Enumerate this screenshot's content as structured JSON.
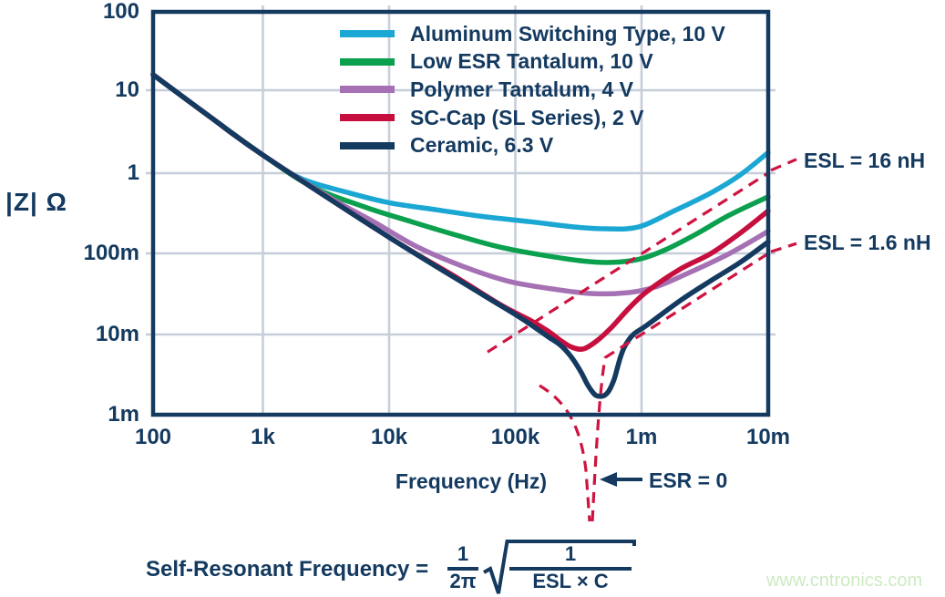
{
  "chart": {
    "ylabel": "|Z| Ω",
    "xlabel": "Frequency (Hz)",
    "y_ticks": [
      "100",
      "10",
      "1",
      "100m",
      "10m",
      "1m"
    ],
    "x_ticks": [
      "100",
      "1k",
      "10k",
      "100k",
      "1m",
      "10m"
    ]
  },
  "annotations": {
    "esl_upper": "ESL = 16 nH",
    "esl_lower": "ESL = 1.6 nH",
    "esr_zero": "ESR = 0"
  },
  "formula": {
    "lhs": "Self-Resonant Frequency =",
    "frac1_num": "1",
    "frac1_den": "2π",
    "frac2_num": "1",
    "frac2_den": "ESL × C"
  },
  "watermark": "www.cntronics.com",
  "colors": {
    "navy": "#143a60",
    "grid": "#c6ced9",
    "dashed_red": "#ce1340",
    "watermark_green": "#cdeac2"
  },
  "chart_data": {
    "type": "line",
    "x_axis": {
      "label": "Frequency (Hz)",
      "scale": "log",
      "range_hz": [
        100,
        10000000
      ],
      "tick_labels": [
        "100",
        "1k",
        "10k",
        "100k",
        "1m",
        "10m"
      ]
    },
    "y_axis": {
      "label": "|Z| Ω",
      "scale": "log",
      "range_ohm": [
        0.001,
        100
      ],
      "tick_labels": [
        "100",
        "10",
        "1",
        "100m",
        "10m",
        "1m"
      ]
    },
    "grid": true,
    "legend_position": "top-center-inside",
    "series": [
      {
        "name": "Aluminum Switching Type, 10 V",
        "color": "#1ba7d3",
        "points_hz_ohm": [
          [
            100,
            16.7
          ],
          [
            330,
            5.0
          ],
          [
            1000,
            1.68
          ],
          [
            2000,
            0.86
          ],
          [
            4600,
            0.58
          ],
          [
            10000,
            0.43
          ],
          [
            24000,
            0.35
          ],
          [
            55000,
            0.29
          ],
          [
            130000,
            0.25
          ],
          [
            290000,
            0.215
          ],
          [
            520000,
            0.204
          ],
          [
            940000,
            0.215
          ],
          [
            1800000,
            0.34
          ],
          [
            3600000,
            0.58
          ],
          [
            6000000,
            0.95
          ],
          [
            10000000,
            1.8
          ]
        ]
      },
      {
        "name": "Low ESR Tantalum, 10 V",
        "color": "#0ba04e",
        "points_hz_ohm": [
          [
            100,
            16.7
          ],
          [
            330,
            5.0
          ],
          [
            1000,
            1.68
          ],
          [
            2400,
            0.69
          ],
          [
            6400,
            0.38
          ],
          [
            15000,
            0.25
          ],
          [
            34000,
            0.17
          ],
          [
            77000,
            0.12
          ],
          [
            180000,
            0.094
          ],
          [
            350000,
            0.081
          ],
          [
            570000,
            0.078
          ],
          [
            940000,
            0.085
          ],
          [
            1500000,
            0.11
          ],
          [
            2600000,
            0.17
          ],
          [
            4900000,
            0.3
          ],
          [
            10000000,
            0.51
          ]
        ]
      },
      {
        "name": "Polymer Tantalum, 4 V",
        "color": "#a571b4",
        "points_hz_ohm": [
          [
            100,
            16.7
          ],
          [
            330,
            5.0
          ],
          [
            1000,
            1.68
          ],
          [
            3300,
            0.51
          ],
          [
            7500,
            0.25
          ],
          [
            17000,
            0.12
          ],
          [
            40000,
            0.068
          ],
          [
            91000,
            0.045
          ],
          [
            210000,
            0.036
          ],
          [
            410000,
            0.032
          ],
          [
            790000,
            0.033
          ],
          [
            1300000,
            0.039
          ],
          [
            2300000,
            0.057
          ],
          [
            4900000,
            0.1
          ],
          [
            10000000,
            0.19
          ]
        ]
      },
      {
        "name": "SC-Cap (SL Series), 2 V",
        "color": "#c60f3f",
        "points_hz_ohm": [
          [
            100,
            16.7
          ],
          [
            330,
            5.0
          ],
          [
            1000,
            1.68
          ],
          [
            10000,
            0.16
          ],
          [
            34000,
            0.051
          ],
          [
            77000,
            0.023
          ],
          [
            130000,
            0.015
          ],
          [
            180000,
            0.011
          ],
          [
            230000,
            0.0083
          ],
          [
            280000,
            0.0069
          ],
          [
            345000,
            0.0066
          ],
          [
            440000,
            0.0083
          ],
          [
            570000,
            0.012
          ],
          [
            790000,
            0.021
          ],
          [
            1100000,
            0.034
          ],
          [
            2000000,
            0.064
          ],
          [
            3500000,
            0.1
          ],
          [
            6000000,
            0.18
          ],
          [
            10000000,
            0.34
          ]
        ]
      },
      {
        "name": "Ceramic, 6.3 V",
        "color": "#143a60",
        "points_hz_ohm": [
          [
            100,
            16.7
          ],
          [
            330,
            5.0
          ],
          [
            1000,
            1.68
          ],
          [
            10000,
            0.16
          ],
          [
            55000,
            0.031
          ],
          [
            110000,
            0.016
          ],
          [
            180000,
            0.0094
          ],
          [
            230000,
            0.0072
          ],
          [
            280000,
            0.0051
          ],
          [
            330000,
            0.0034
          ],
          [
            370000,
            0.0024
          ],
          [
            410000,
            0.0019
          ],
          [
            440000,
            0.00173
          ],
          [
            500000,
            0.00173
          ],
          [
            550000,
            0.002
          ],
          [
            600000,
            0.0027
          ],
          [
            640000,
            0.0038
          ],
          [
            680000,
            0.0053
          ],
          [
            740000,
            0.0073
          ],
          [
            860000,
            0.01
          ],
          [
            1100000,
            0.013
          ],
          [
            2000000,
            0.026
          ],
          [
            3500000,
            0.046
          ],
          [
            6000000,
            0.078
          ],
          [
            10000000,
            0.14
          ]
        ]
      }
    ],
    "guide_lines": [
      {
        "type": "esl-asymptote",
        "label": "ESL = 16 nH",
        "esl_nh": 16
      },
      {
        "type": "esl-asymptote",
        "label": "ESL = 1.6 nH",
        "esl_nh": 1.6
      }
    ],
    "callouts": [
      {
        "type": "arrow-note",
        "label": "ESR = 0",
        "meaning": "ideal zero-ESR resonance dip of the ceramic capacitor"
      }
    ]
  }
}
